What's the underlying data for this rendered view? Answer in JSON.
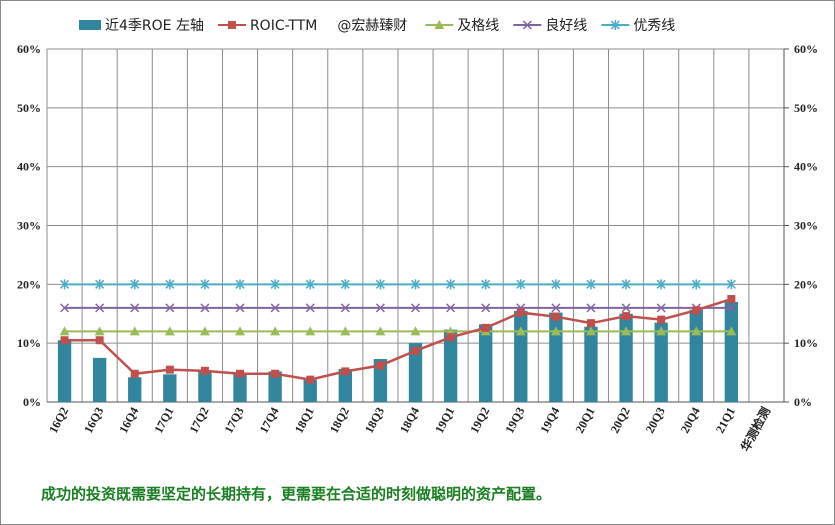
{
  "footer_note": "成功的投资既需要坚定的长期持有，更需要在合适的时刻做聪明的资产配置。",
  "chart_data": {
    "type": "bar",
    "categories": [
      "16Q2",
      "16Q3",
      "16Q4",
      "17Q1",
      "17Q2",
      "17Q3",
      "17Q4",
      "18Q1",
      "18Q2",
      "18Q3",
      "18Q4",
      "19Q1",
      "19Q2",
      "19Q3",
      "19Q4",
      "20Q1",
      "20Q2",
      "20Q3",
      "20Q4",
      "21Q1",
      "华测检测"
    ],
    "ylim": [
      0,
      60
    ],
    "y_ticks": [
      "0%",
      "10%",
      "20%",
      "30%",
      "40%",
      "50%",
      "60%"
    ],
    "y2_ticks": [
      "0%",
      "10%",
      "20%",
      "30%",
      "40%",
      "50%",
      "60%"
    ],
    "grid": true,
    "legend_position": "top",
    "legend_extra_text": "@宏赫臻财",
    "series": [
      {
        "name": "近4季ROE 左轴",
        "type": "bar",
        "color": "#31859C",
        "values": [
          10.5,
          7.5,
          4.2,
          4.7,
          5.3,
          5.0,
          5.2,
          3.8,
          5.6,
          7.3,
          10.0,
          12.3,
          13.2,
          15.5,
          15.2,
          12.8,
          15.0,
          13.5,
          15.7,
          17.0,
          null
        ]
      },
      {
        "name": "ROIC-TTM",
        "type": "line",
        "marker": "square",
        "color": "#C0504D",
        "values": [
          10.5,
          10.5,
          4.8,
          5.5,
          5.3,
          4.8,
          4.8,
          3.8,
          5.2,
          6.2,
          8.7,
          11.0,
          12.6,
          15.2,
          14.5,
          13.4,
          14.6,
          14.0,
          15.6,
          17.5,
          null
        ]
      },
      {
        "name": "及格线",
        "type": "line",
        "marker": "triangle",
        "color": "#9BBB59",
        "values": [
          12,
          12,
          12,
          12,
          12,
          12,
          12,
          12,
          12,
          12,
          12,
          12,
          12,
          12,
          12,
          12,
          12,
          12,
          12,
          12,
          null
        ]
      },
      {
        "name": "良好线",
        "type": "line",
        "marker": "x",
        "color": "#8064A2",
        "values": [
          16,
          16,
          16,
          16,
          16,
          16,
          16,
          16,
          16,
          16,
          16,
          16,
          16,
          16,
          16,
          16,
          16,
          16,
          16,
          16,
          null
        ]
      },
      {
        "name": "优秀线",
        "type": "line",
        "marker": "star",
        "color": "#4BACC6",
        "values": [
          20,
          20,
          20,
          20,
          20,
          20,
          20,
          20,
          20,
          20,
          20,
          20,
          20,
          20,
          20,
          20,
          20,
          20,
          20,
          20,
          null
        ]
      }
    ]
  }
}
